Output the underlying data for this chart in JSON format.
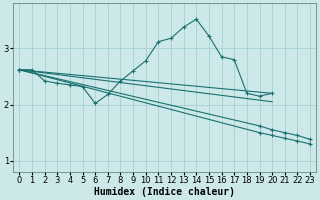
{
  "bg_color": "#cce8e8",
  "grid_color": "#aad4d4",
  "line_color": "#1a7070",
  "xlabel": "Humidex (Indice chaleur)",
  "xlabel_fontsize": 7,
  "tick_fontsize": 6,
  "xlim": [
    -0.5,
    23.5
  ],
  "ylim": [
    0.8,
    3.8
  ],
  "yticks": [
    1,
    2,
    3
  ],
  "figsize": [
    3.2,
    2.0
  ],
  "dpi": 100,
  "series": [
    {
      "x": [
        0,
        1,
        2,
        3,
        4,
        5,
        6,
        7,
        8,
        9,
        10,
        11,
        12,
        13,
        14,
        15,
        16,
        17,
        18,
        19,
        20
      ],
      "y": [
        2.62,
        2.62,
        2.42,
        2.38,
        2.35,
        2.32,
        2.02,
        2.18,
        2.42,
        2.6,
        2.78,
        3.12,
        3.18,
        3.38,
        3.52,
        3.22,
        2.85,
        2.8,
        2.2,
        2.15,
        2.2
      ],
      "marker": true
    },
    {
      "x": [
        0,
        20
      ],
      "y": [
        2.62,
        2.2
      ],
      "marker": false
    },
    {
      "x": [
        0,
        20
      ],
      "y": [
        2.62,
        2.05
      ],
      "marker": false
    },
    {
      "x": [
        0,
        19,
        20,
        21,
        22,
        23
      ],
      "y": [
        2.62,
        1.62,
        1.55,
        1.5,
        1.45,
        1.38
      ],
      "marker": true
    },
    {
      "x": [
        0,
        19,
        20,
        21,
        22,
        23
      ],
      "y": [
        2.62,
        1.5,
        1.45,
        1.4,
        1.35,
        1.3
      ],
      "marker": true
    }
  ]
}
